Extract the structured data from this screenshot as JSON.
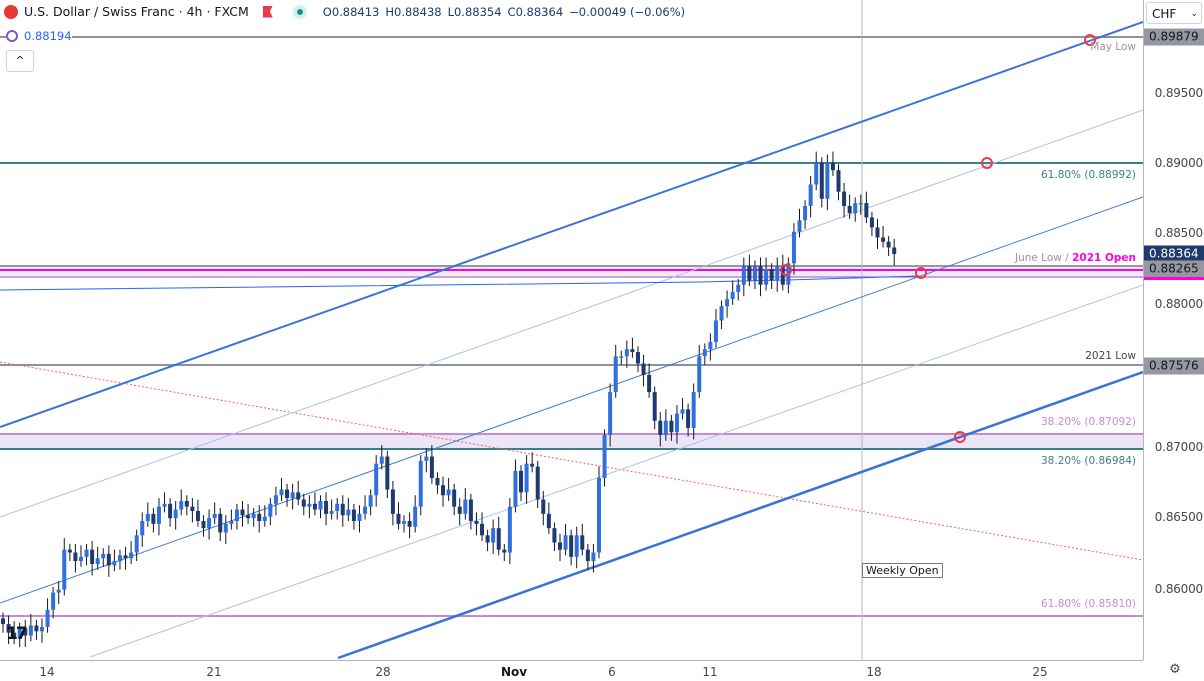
{
  "header": {
    "symbol_title": "U.S. Dollar / Swiss Franc · 4h · FXCM",
    "ohlc": {
      "open": "O0.88413",
      "high": "H0.88438",
      "low": "L0.88354",
      "close": "C0.88364",
      "change": "−0.00049 (−0.06%)"
    },
    "indicator_value": "0.88194",
    "collapse_label": "^"
  },
  "currency_selector": {
    "value": "CHF",
    "chevron": "⌄"
  },
  "price_axis": {
    "labels": [
      "0.89500",
      "0.89000",
      "0.88500",
      "0.88000",
      "0.87000",
      "0.86500",
      "0.86000"
    ],
    "tags": [
      {
        "value": "0.89879",
        "bg": "#9598a1",
        "fg": "#131722"
      },
      {
        "value": "0.88364",
        "bg": "#1e3a6e",
        "fg": "#ffffff"
      },
      {
        "value": "0.88265",
        "bg": "#9598a1",
        "fg": "#131722"
      },
      {
        "value": "0.87576",
        "bg": "#9598a1",
        "fg": "#131722"
      }
    ]
  },
  "time_axis": {
    "labels": [
      "14",
      "21",
      "28",
      "Nov",
      "6",
      "11",
      "18",
      "25"
    ]
  },
  "annotations": {
    "may_low": "May Low",
    "fib_6180_upper": "61.80% (0.88992)",
    "june_low": "June Low /",
    "open_2021": "2021 Open",
    "low_2021": "2021 Low",
    "fib_3820_a": "38.20% (0.87092)",
    "fib_3820_b": "38.20% (0.86984)",
    "fib_6180_lower": "61.80% (0.85810)",
    "weekly_open": "Weekly Open"
  },
  "colors": {
    "up": "#2f6fde",
    "down": "#1e3a6e",
    "teal": "#3d7f87",
    "fib_pink": "#c88ad8",
    "magenta": "#ff00e6",
    "channel": "#3a72d8",
    "alert": "#f23645"
  },
  "icons": {
    "symbol": "usd-chf-flag-icon",
    "flag": "red-flag-icon",
    "status": "market-open-dot-icon",
    "indicator": "indicator-icon",
    "settings": "gear-icon",
    "logo": "tradingview-logo-icon"
  },
  "chart_data": {
    "type": "candlestick",
    "timeframe": "4h",
    "ylim": [
      0.8558,
      0.9005
    ],
    "levels": [
      0.89879,
      0.88992,
      0.88265,
      0.87576,
      0.87092,
      0.86984,
      0.8581
    ],
    "close": [
      0.8578,
      0.8572,
      0.8568,
      0.8575,
      0.857,
      0.8577,
      0.8573,
      0.8576,
      0.8588,
      0.86,
      0.8602,
      0.863,
      0.8628,
      0.8622,
      0.8625,
      0.863,
      0.862,
      0.8624,
      0.8627,
      0.8619,
      0.8622,
      0.8626,
      0.8624,
      0.8628,
      0.864,
      0.865,
      0.8655,
      0.8648,
      0.866,
      0.8662,
      0.8652,
      0.8658,
      0.8664,
      0.866,
      0.8657,
      0.865,
      0.8645,
      0.8652,
      0.8655,
      0.8642,
      0.8648,
      0.865,
      0.8658,
      0.8654,
      0.8652,
      0.8655,
      0.865,
      0.8653,
      0.8662,
      0.8668,
      0.8672,
      0.8666,
      0.867,
      0.8665,
      0.866,
      0.8662,
      0.8658,
      0.8664,
      0.8655,
      0.8657,
      0.8662,
      0.8654,
      0.8658,
      0.865,
      0.8655,
      0.866,
      0.8668,
      0.869,
      0.8695,
      0.8672,
      0.8655,
      0.8648,
      0.865,
      0.8646,
      0.866,
      0.8692,
      0.8695,
      0.868,
      0.8675,
      0.8668,
      0.8672,
      0.866,
      0.8655,
      0.8665,
      0.865,
      0.8648,
      0.864,
      0.8635,
      0.8645,
      0.863,
      0.8628,
      0.866,
      0.8685,
      0.867,
      0.869,
      0.8688,
      0.8665,
      0.8655,
      0.8645,
      0.8635,
      0.863,
      0.864,
      0.8625,
      0.864,
      0.863,
      0.8622,
      0.8628,
      0.868,
      0.871,
      0.874,
      0.8765,
      0.8765,
      0.877,
      0.8768,
      0.876,
      0.8752,
      0.874,
      0.872,
      0.871,
      0.872,
      0.8712,
      0.8725,
      0.8728,
      0.8715,
      0.874,
      0.8765,
      0.877,
      0.8775,
      0.879,
      0.88,
      0.8805,
      0.881,
      0.8815,
      0.8828,
      0.8818,
      0.8828,
      0.8815,
      0.8826,
      0.8818,
      0.8828,
      0.8815,
      0.883,
      0.8852,
      0.886,
      0.887,
      0.8885,
      0.89,
      0.8875,
      0.89,
      0.8895,
      0.888,
      0.887,
      0.8865,
      0.8872,
      0.8872,
      0.8862,
      0.8855,
      0.8848,
      0.8845,
      0.8841,
      0.88364
    ]
  }
}
